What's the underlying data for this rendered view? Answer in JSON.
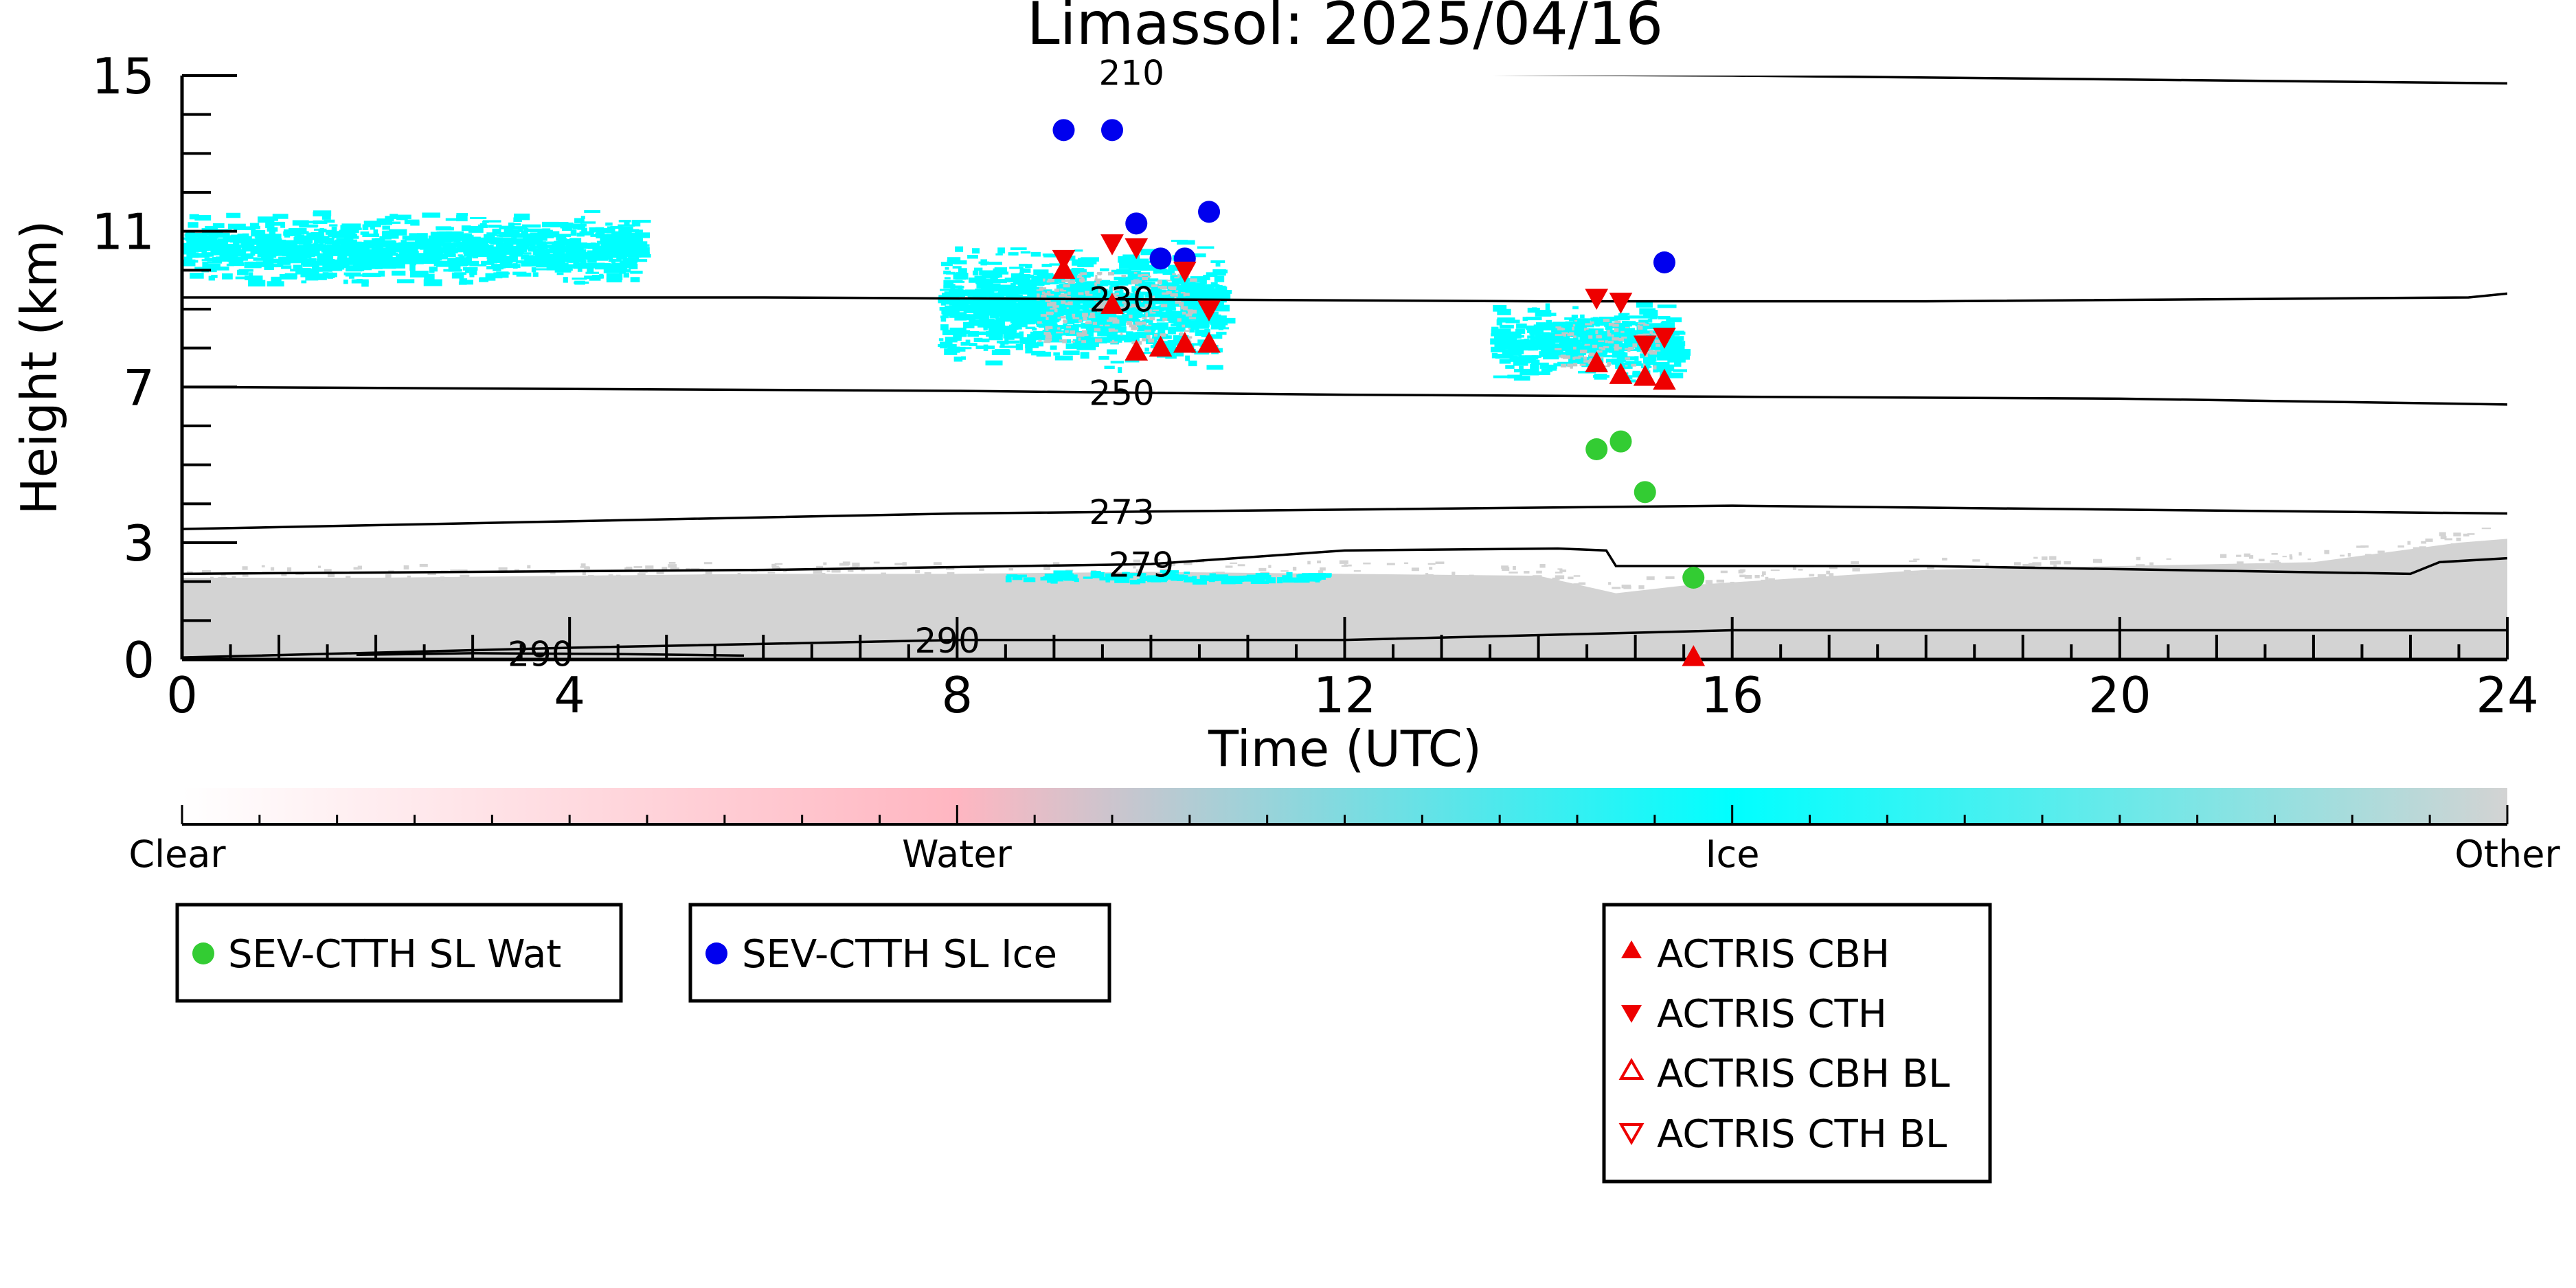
{
  "chart_data": {
    "type": "scatter",
    "title": "Limassol: 2025/04/16",
    "xlabel": "Time (UTC)",
    "ylabel": "Height (km)",
    "xlim": [
      0,
      24
    ],
    "ylim": [
      0,
      15
    ],
    "x_ticks": [
      0,
      4,
      8,
      12,
      16,
      20,
      24
    ],
    "y_ticks": [
      0,
      3,
      7,
      11,
      15
    ],
    "x_tick_labels": [
      "0",
      "4",
      "8",
      "12",
      "16",
      "20",
      "24"
    ],
    "y_tick_labels": [
      "0",
      "3",
      "7",
      "11",
      "15"
    ],
    "colorbar": {
      "labels": [
        "Clear",
        "Water",
        "Ice",
        "Other"
      ],
      "colors": [
        "#ffffff",
        "#ffb6c1",
        "#00ffff",
        "#d3d3d3"
      ]
    },
    "temperature_contours": [
      {
        "label": "210",
        "x": [
          0,
          8,
          16,
          24
        ],
        "y": [
          15.2,
          15.1,
          15.0,
          14.8
        ],
        "label_x": 9.8
      },
      {
        "label": "230",
        "x": [
          0,
          6,
          10,
          14,
          18,
          23.6,
          24
        ],
        "y": [
          9.3,
          9.3,
          9.25,
          9.2,
          9.2,
          9.3,
          9.4
        ],
        "label_x": 9.7
      },
      {
        "label": "250",
        "x": [
          0,
          8,
          12,
          16,
          20,
          24
        ],
        "y": [
          7.0,
          6.9,
          6.8,
          6.75,
          6.7,
          6.55
        ],
        "label_x": 9.7
      },
      {
        "label": "273",
        "x": [
          0,
          4,
          8,
          12,
          16,
          20,
          24
        ],
        "y": [
          3.35,
          3.55,
          3.75,
          3.85,
          3.95,
          3.85,
          3.75
        ],
        "label_x": 9.7
      },
      {
        "label": "279",
        "x": [
          0,
          6,
          10,
          12,
          14.2,
          14.7,
          14.8,
          18,
          23,
          23.3,
          24
        ],
        "y": [
          2.2,
          2.3,
          2.45,
          2.8,
          2.85,
          2.8,
          2.4,
          2.4,
          2.2,
          2.5,
          2.6
        ],
        "label_x": 9.9
      },
      {
        "label": "290",
        "x": [
          0,
          4,
          8,
          12,
          16,
          20,
          24
        ],
        "y": [
          0.05,
          0.3,
          0.5,
          0.5,
          0.75,
          0.75,
          0.75
        ],
        "label_x": 7.9
      },
      {
        "label": "290",
        "x": [
          1.8,
          3.0,
          4.5,
          5.8
        ],
        "y": [
          0.12,
          0.16,
          0.14,
          0.1
        ],
        "label_x": 3.7
      }
    ],
    "series": [
      {
        "name": "SEV-CTTH SL Wat",
        "marker": "circle",
        "color": "#33cc33",
        "points": [
          [
            14.6,
            5.4
          ],
          [
            14.85,
            5.6
          ],
          [
            15.1,
            4.3
          ],
          [
            15.6,
            2.1
          ]
        ]
      },
      {
        "name": "SEV-CTTH SL Ice",
        "marker": "circle",
        "color": "#0000ee",
        "points": [
          [
            9.1,
            13.6
          ],
          [
            9.6,
            13.6
          ],
          [
            9.85,
            11.2
          ],
          [
            10.1,
            10.3
          ],
          [
            10.35,
            10.3
          ],
          [
            10.6,
            11.5
          ],
          [
            15.3,
            10.2
          ]
        ]
      },
      {
        "name": "ACTRIS CBH",
        "marker": "triangle-up",
        "color": "#ee0000",
        "points": [
          [
            9.1,
            10.0
          ],
          [
            9.6,
            9.1
          ],
          [
            9.85,
            7.9
          ],
          [
            10.1,
            8.0
          ],
          [
            10.35,
            8.1
          ],
          [
            10.6,
            8.1
          ],
          [
            14.6,
            7.6
          ],
          [
            14.85,
            7.3
          ],
          [
            15.1,
            7.25
          ],
          [
            15.3,
            7.15
          ],
          [
            15.6,
            0.05
          ]
        ]
      },
      {
        "name": "ACTRIS CTH",
        "marker": "triangle-down",
        "color": "#ee0000",
        "points": [
          [
            9.1,
            10.3
          ],
          [
            9.6,
            10.7
          ],
          [
            9.85,
            10.6
          ],
          [
            10.35,
            10.0
          ],
          [
            10.6,
            9.0
          ],
          [
            14.6,
            9.3
          ],
          [
            14.85,
            9.2
          ],
          [
            15.1,
            8.1
          ],
          [
            15.3,
            8.3
          ]
        ]
      },
      {
        "name": "ACTRIS CBH BL",
        "marker": "triangle-up-open",
        "color": "#ee0000",
        "points": []
      },
      {
        "name": "ACTRIS CTH BL",
        "marker": "triangle-down-open",
        "color": "#ee0000",
        "points": []
      }
    ],
    "cloud_fields": [
      {
        "class": "Other",
        "color": "#d3d3d3",
        "x": [
          0,
          2,
          4,
          6,
          8,
          10,
          12,
          14,
          14.8,
          15.5,
          18,
          20,
          22,
          23.5,
          24
        ],
        "top": [
          2.1,
          2.1,
          2.15,
          2.2,
          2.2,
          2.25,
          2.2,
          2.15,
          1.7,
          1.9,
          2.3,
          2.4,
          2.5,
          3.0,
          3.1
        ]
      },
      {
        "class": "Ice",
        "color": "#00ffff",
        "x0": 0,
        "x1": 4.7,
        "y0": 9.6,
        "y1": 11.6
      },
      {
        "class": "Ice",
        "color": "#00ffff",
        "x0": 7.8,
        "x1": 10.7,
        "y0": 7.5,
        "y1": 10.8
      },
      {
        "class": "Ice",
        "color": "#00ffff",
        "x0": 13.5,
        "x1": 15.4,
        "y0": 7.1,
        "y1": 9.3
      },
      {
        "class": "Ice",
        "color": "#00ffff",
        "x0": 8.5,
        "x1": 11.8,
        "y0": 2.0,
        "y1": 2.3
      }
    ],
    "legend": {
      "left_box": "SEV-CTTH SL Wat",
      "middle_box": "SEV-CTTH SL Ice",
      "right_box": [
        "ACTRIS CBH",
        "ACTRIS CTH",
        "ACTRIS CBH BL",
        "ACTRIS CTH BL"
      ]
    }
  }
}
